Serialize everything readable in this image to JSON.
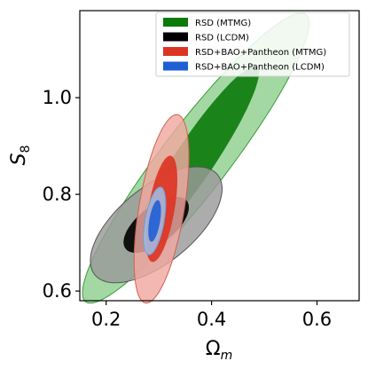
{
  "chart_data": {
    "type": "contour",
    "xlabel_main": "Ω",
    "xlabel_sub": "m",
    "ylabel_main": "S",
    "ylabel_sub": "8",
    "xlim": [
      0.15,
      0.68
    ],
    "ylim": [
      0.58,
      1.18
    ],
    "x_ticks": [
      {
        "value": 0.2,
        "label": "0.2"
      },
      {
        "value": 0.4,
        "label": "0.4"
      },
      {
        "value": 0.6,
        "label": "0.6"
      }
    ],
    "y_ticks": [
      {
        "value": 0.6,
        "label": "0.6"
      },
      {
        "value": 0.8,
        "label": "0.8"
      },
      {
        "value": 1.0,
        "label": "1.0"
      }
    ],
    "legend_position": "top-right",
    "series": [
      {
        "name": "RSD (MTMG)",
        "fill_color": "#0b7a0b",
        "outer_color": "#8fcf8f",
        "stroke_color": "#3a9a3a",
        "center": [
          0.37,
          0.875
        ],
        "outer": {
          "x_half": 0.215,
          "y_half": 0.3,
          "rho": 0.93
        },
        "inner": {
          "x_half": 0.12,
          "y_half": 0.19,
          "rho": 0.93
        }
      },
      {
        "name": "RSD (LCDM)",
        "fill_color": "#000000",
        "outer_color": "#9a9a9a",
        "stroke_color": "#555555",
        "center": [
          0.295,
          0.737
        ],
        "outer": {
          "x_half": 0.125,
          "y_half": 0.12,
          "rho": 0.62
        },
        "inner": {
          "x_half": 0.062,
          "y_half": 0.058,
          "rho": 0.62
        }
      },
      {
        "name": "RSD+BAO+Pantheon (MTMG)",
        "fill_color": "#dd3322",
        "outer_color": "#f0a8a0",
        "stroke_color": "#d06050",
        "center": [
          0.305,
          0.77
        ],
        "outer": {
          "x_half": 0.052,
          "y_half": 0.195,
          "rho": 0.55
        },
        "inner": {
          "x_half": 0.03,
          "y_half": 0.11,
          "rho": 0.55
        }
      },
      {
        "name": "RSD+BAO+Pantheon (LCDM)",
        "fill_color": "#1f5fd6",
        "outer_color": "#9ec5ee",
        "stroke_color": "#6b9fdd",
        "center": [
          0.292,
          0.745
        ],
        "outer": {
          "x_half": 0.021,
          "y_half": 0.07,
          "rho": 0.5
        },
        "inner": {
          "x_half": 0.012,
          "y_half": 0.043,
          "rho": 0.5
        }
      }
    ]
  }
}
